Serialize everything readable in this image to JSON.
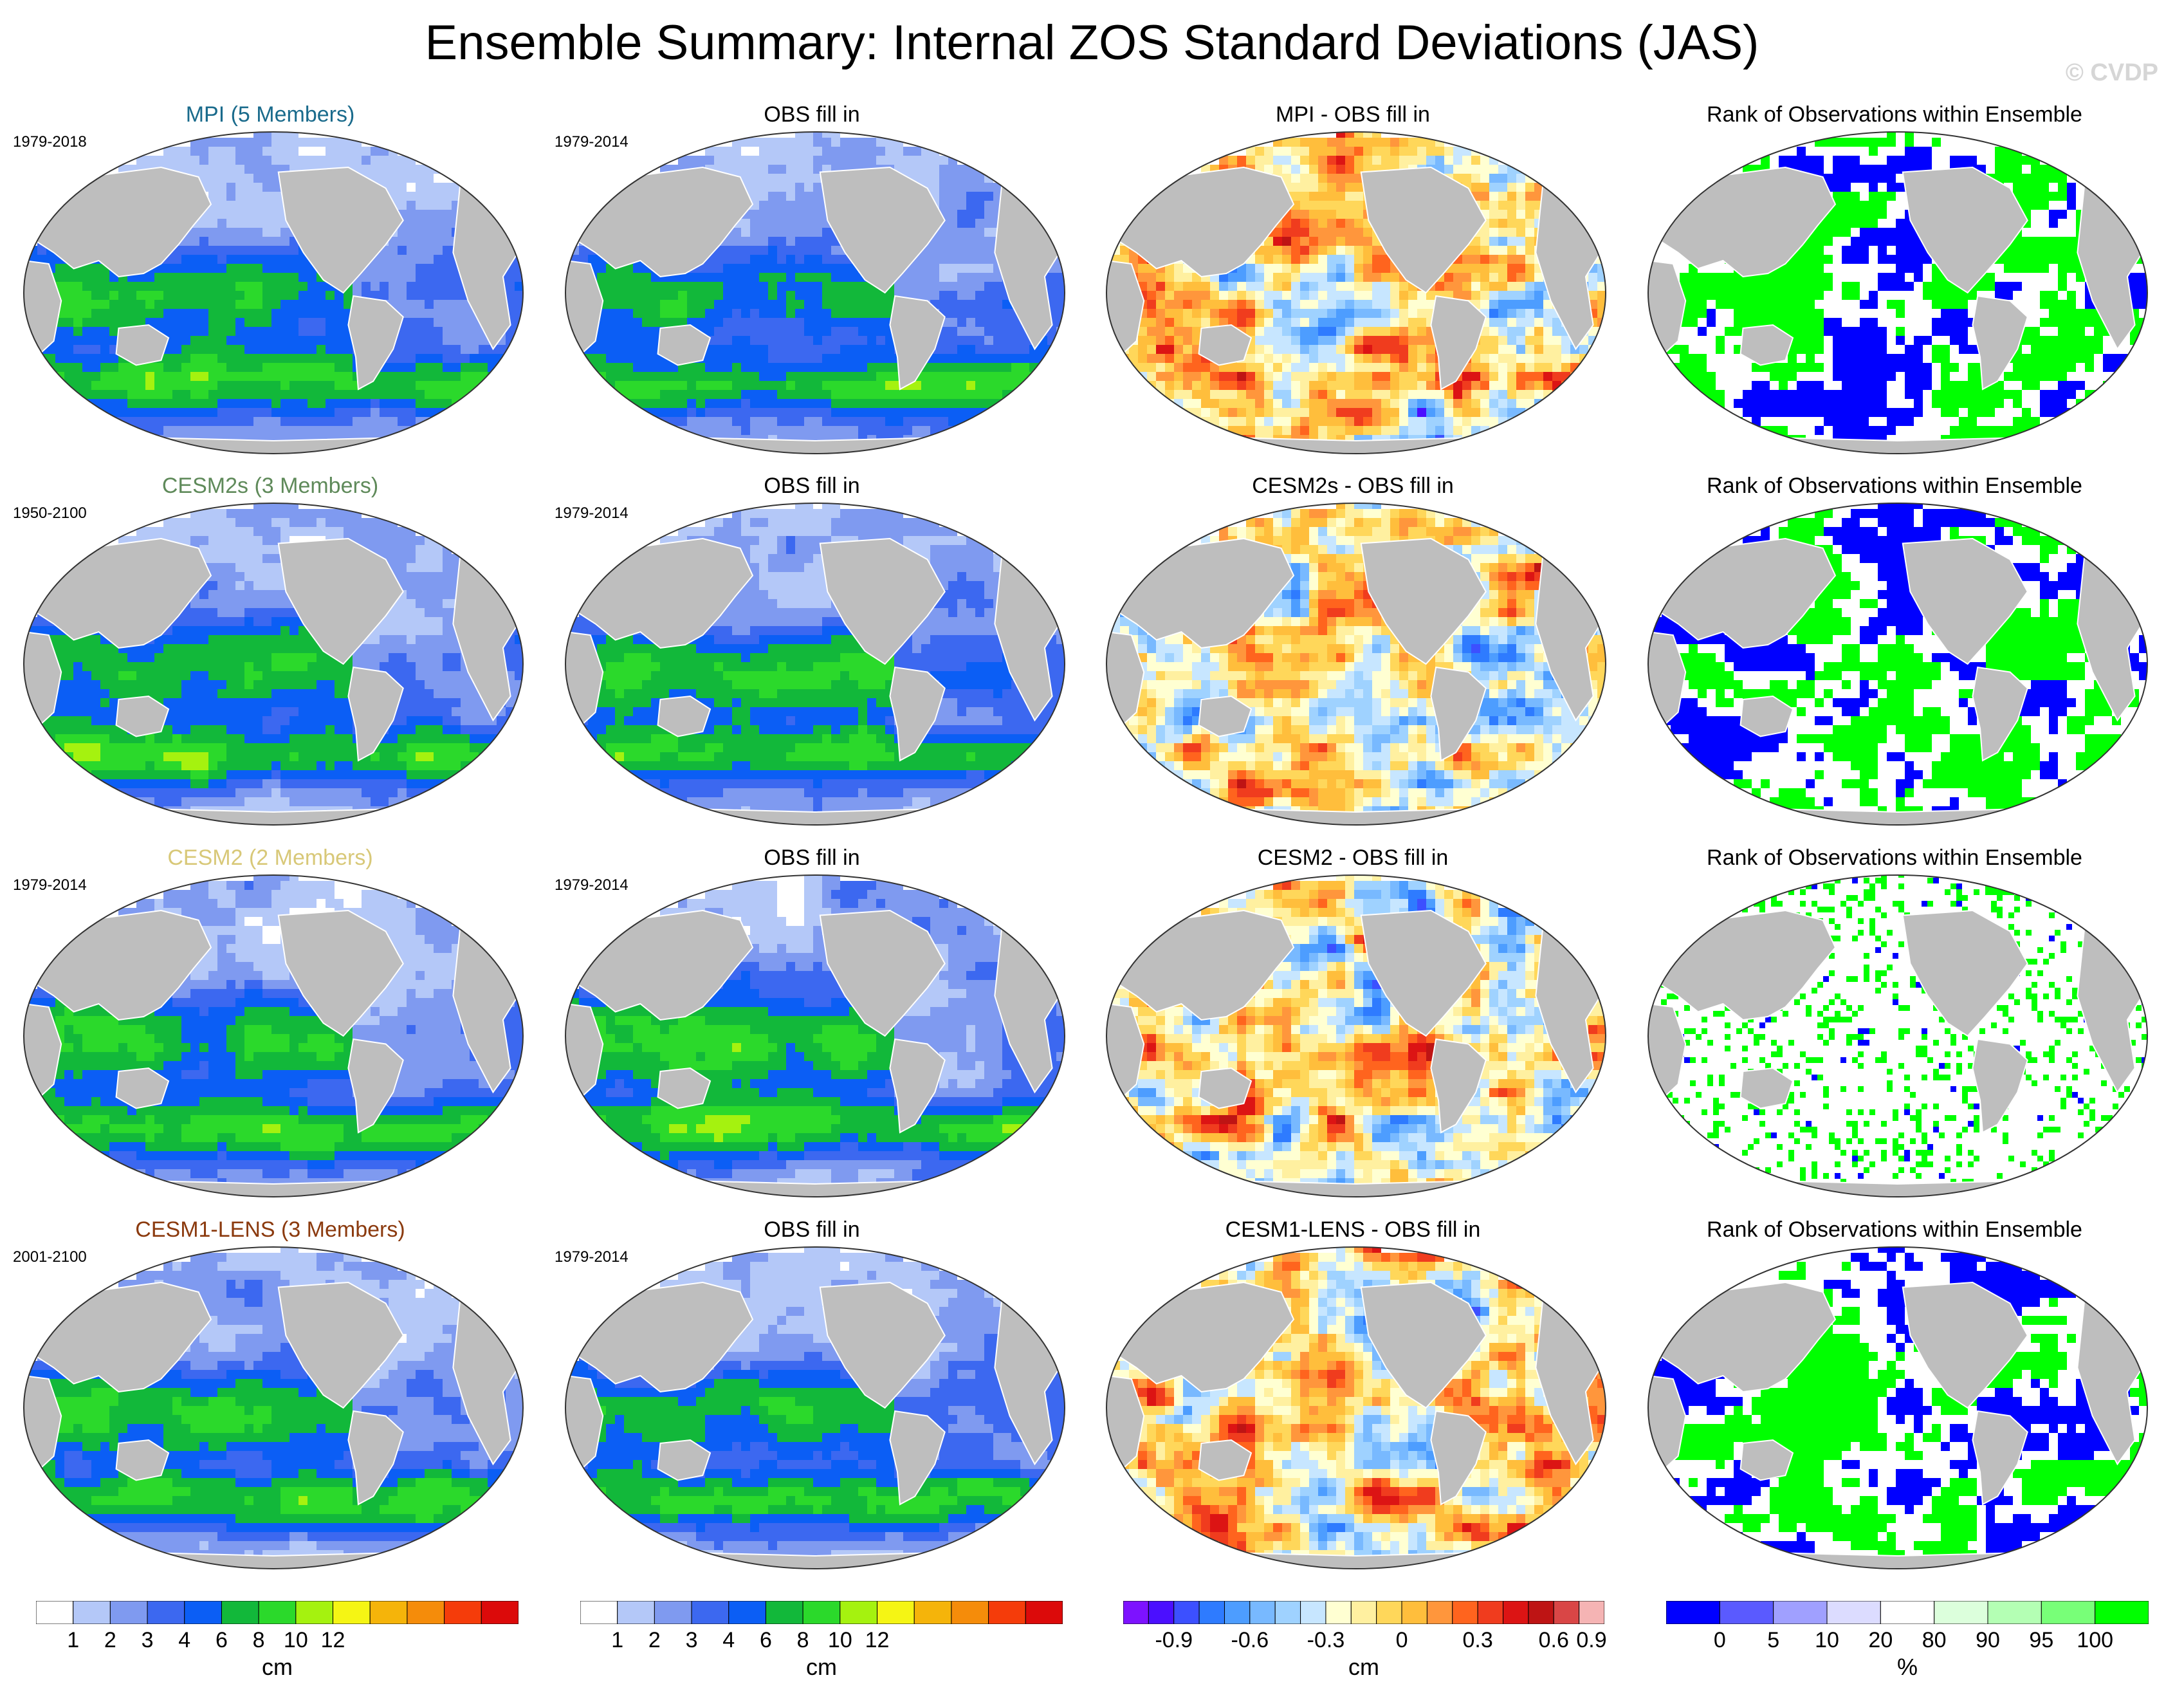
{
  "title": "Ensemble Summary: Internal ZOS Standard Deviations (JAS)",
  "copyright": "© CVDP",
  "colors": {
    "land": "#bebebe",
    "coast": "#ffffff",
    "outline": "#333333",
    "sd": [
      "#ffffff",
      "#b4c8f8",
      "#7f9af0",
      "#3c68f0",
      "#0b5ef5",
      "#12b83a",
      "#2bd92b",
      "#a5f20f",
      "#f5f514",
      "#f5b40a",
      "#f58c0a",
      "#f53c0a",
      "#dc0a0a"
    ],
    "diff": [
      "#7d12ff",
      "#4b0fff",
      "#3c50ff",
      "#2e7bff",
      "#4d9dff",
      "#78b9ff",
      "#9fd2ff",
      "#c7e6ff",
      "#ffffd2",
      "#fff0a0",
      "#ffd75a",
      "#ffbe3c",
      "#ff963c",
      "#ff641e",
      "#f03c1e",
      "#dc1414",
      "#be1414",
      "#d94646",
      "#f5b4b4"
    ],
    "rank": [
      "#0000ff",
      "#5a5aff",
      "#a0a0ff",
      "#dcdcff",
      "#ffffff",
      "#dcffdc",
      "#b4ffb4",
      "#78ff78",
      "#00ff00"
    ]
  },
  "rows": [
    {
      "model": {
        "title": "MPI (5 Members)",
        "color": "#1a6b8c",
        "period": "1979-2018"
      },
      "obs": {
        "title": "OBS fill in",
        "period": "1979-2014"
      },
      "diff": {
        "title": "MPI - OBS fill in"
      },
      "rank": {
        "title": "Rank of Observations within Ensemble"
      }
    },
    {
      "model": {
        "title": "CESM2s (3 Members)",
        "color": "#5f8a5a",
        "period": "1950-2100"
      },
      "obs": {
        "title": "OBS fill in",
        "period": "1979-2014"
      },
      "diff": {
        "title": "CESM2s - OBS fill in"
      },
      "rank": {
        "title": "Rank of Observations within Ensemble"
      }
    },
    {
      "model": {
        "title": "CESM2 (2 Members)",
        "color": "#d8c878",
        "period": "1979-2014"
      },
      "obs": {
        "title": "OBS fill in",
        "period": "1979-2014"
      },
      "diff": {
        "title": "CESM2 - OBS fill in"
      },
      "rank": {
        "title": "Rank of Observations within Ensemble"
      }
    },
    {
      "model": {
        "title": "CESM1-LENS (3 Members)",
        "color": "#8b3a0e",
        "period": "2001-2100"
      },
      "obs": {
        "title": "OBS fill in",
        "period": "1979-2014"
      },
      "diff": {
        "title": "CESM1-LENS - OBS fill in"
      },
      "rank": {
        "title": "Rank of Observations within Ensemble"
      }
    }
  ],
  "colorbars": [
    {
      "unit": "cm",
      "labels": [
        "1",
        "2",
        "3",
        "4",
        "6",
        "8",
        "10",
        "12"
      ]
    },
    {
      "unit": "cm",
      "labels": [
        "1",
        "2",
        "3",
        "4",
        "6",
        "8",
        "10",
        "12"
      ]
    },
    {
      "unit": "cm",
      "labels": [
        "-0.9",
        "-0.6",
        "-0.3",
        "0",
        "0.3",
        "0.6",
        "0.9"
      ]
    },
    {
      "unit": "%",
      "labels": [
        "0",
        "5",
        "10",
        "20",
        "80",
        "90",
        "95",
        "100"
      ]
    }
  ]
}
